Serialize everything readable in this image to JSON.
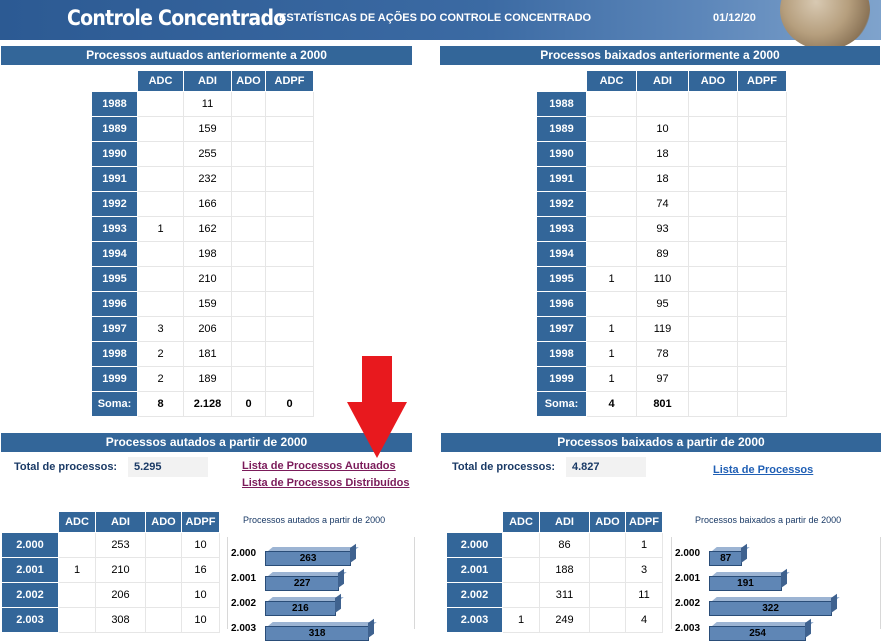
{
  "header": {
    "title": "Controle Concentrado",
    "subtitle": "ESTATÍSTICAS DE AÇÕES DO CONTROLE CONCENTRADO",
    "date": "01/12/20"
  },
  "columns": [
    "ADC",
    "ADI",
    "ADO",
    "ADPF"
  ],
  "autuados_pre2000": {
    "title": "Processos autuados anteriormente a 2000",
    "rows": [
      {
        "year": "1988",
        "adc": "",
        "adi": "11",
        "ado": "",
        "adpf": ""
      },
      {
        "year": "1989",
        "adc": "",
        "adi": "159",
        "ado": "",
        "adpf": ""
      },
      {
        "year": "1990",
        "adc": "",
        "adi": "255",
        "ado": "",
        "adpf": ""
      },
      {
        "year": "1991",
        "adc": "",
        "adi": "232",
        "ado": "",
        "adpf": ""
      },
      {
        "year": "1992",
        "adc": "",
        "adi": "166",
        "ado": "",
        "adpf": ""
      },
      {
        "year": "1993",
        "adc": "1",
        "adi": "162",
        "ado": "",
        "adpf": ""
      },
      {
        "year": "1994",
        "adc": "",
        "adi": "198",
        "ado": "",
        "adpf": ""
      },
      {
        "year": "1995",
        "adc": "",
        "adi": "210",
        "ado": "",
        "adpf": ""
      },
      {
        "year": "1996",
        "adc": "",
        "adi": "159",
        "ado": "",
        "adpf": ""
      },
      {
        "year": "1997",
        "adc": "3",
        "adi": "206",
        "ado": "",
        "adpf": ""
      },
      {
        "year": "1998",
        "adc": "2",
        "adi": "181",
        "ado": "",
        "adpf": ""
      },
      {
        "year": "1999",
        "adc": "2",
        "adi": "189",
        "ado": "",
        "adpf": ""
      }
    ],
    "sum": {
      "label": "Soma:",
      "adc": "8",
      "adi": "2.128",
      "ado": "0",
      "adpf": "0"
    }
  },
  "baixados_pre2000": {
    "title": "Processos baixados anteriormente a 2000",
    "rows": [
      {
        "year": "1988",
        "adc": "",
        "adi": "",
        "ado": "",
        "adpf": ""
      },
      {
        "year": "1989",
        "adc": "",
        "adi": "10",
        "ado": "",
        "adpf": ""
      },
      {
        "year": "1990",
        "adc": "",
        "adi": "18",
        "ado": "",
        "adpf": ""
      },
      {
        "year": "1991",
        "adc": "",
        "adi": "18",
        "ado": "",
        "adpf": ""
      },
      {
        "year": "1992",
        "adc": "",
        "adi": "74",
        "ado": "",
        "adpf": ""
      },
      {
        "year": "1993",
        "adc": "",
        "adi": "93",
        "ado": "",
        "adpf": ""
      },
      {
        "year": "1994",
        "adc": "",
        "adi": "89",
        "ado": "",
        "adpf": ""
      },
      {
        "year": "1995",
        "adc": "1",
        "adi": "110",
        "ado": "",
        "adpf": ""
      },
      {
        "year": "1996",
        "adc": "",
        "adi": "95",
        "ado": "",
        "adpf": ""
      },
      {
        "year": "1997",
        "adc": "1",
        "adi": "119",
        "ado": "",
        "adpf": ""
      },
      {
        "year": "1998",
        "adc": "1",
        "adi": "78",
        "ado": "",
        "adpf": ""
      },
      {
        "year": "1999",
        "adc": "1",
        "adi": "97",
        "ado": "",
        "adpf": ""
      }
    ],
    "sum": {
      "label": "Soma:",
      "adc": "4",
      "adi": "801",
      "ado": "",
      "adpf": ""
    }
  },
  "autados_2000": {
    "title": "Processos autados a partir de 2000",
    "total_label": "Total de processos:",
    "total_value": "5.295",
    "link1": "Lista de Processos Autuados",
    "link2": "Lista de Processos Distribuídos",
    "rows": [
      {
        "year": "2.000",
        "adc": "",
        "adi": "253",
        "ado": "",
        "adpf": "10"
      },
      {
        "year": "2.001",
        "adc": "1",
        "adi": "210",
        "ado": "",
        "adpf": "16"
      },
      {
        "year": "2.002",
        "adc": "",
        "adi": "206",
        "ado": "",
        "adpf": "10"
      },
      {
        "year": "2.003",
        "adc": "",
        "adi": "308",
        "ado": "",
        "adpf": "10"
      }
    ],
    "chart_title": "Processos autados a partir de 2000"
  },
  "baixados_2000": {
    "title": "Processos baixados a partir de 2000",
    "total_label": "Total de processos:",
    "total_value": "4.827",
    "link": "Lista de Processos",
    "rows": [
      {
        "year": "2.000",
        "adc": "",
        "adi": "86",
        "ado": "",
        "adpf": "1"
      },
      {
        "year": "2.001",
        "adc": "",
        "adi": "188",
        "ado": "",
        "adpf": "3"
      },
      {
        "year": "2.002",
        "adc": "",
        "adi": "311",
        "ado": "",
        "adpf": "11"
      },
      {
        "year": "2.003",
        "adc": "1",
        "adi": "249",
        "ado": "",
        "adpf": "4"
      }
    ],
    "chart_title": "Processos baixados a partir de 2000"
  },
  "chart_data": [
    {
      "type": "bar",
      "title": "Processos autados a partir de 2000",
      "orientation": "horizontal",
      "categories": [
        "2.000",
        "2.001",
        "2.002",
        "2.003"
      ],
      "values": [
        263,
        227,
        216,
        318
      ],
      "xlim": [
        0,
        400
      ]
    },
    {
      "type": "bar",
      "title": "Processos baixados a partir de 2000",
      "orientation": "horizontal",
      "categories": [
        "2.000",
        "2.001",
        "2.002",
        "2.003"
      ],
      "values": [
        87,
        191,
        322,
        254
      ],
      "xlim": [
        0,
        400
      ]
    }
  ],
  "colors": {
    "header_blue": "#336699",
    "annotation_arrow": "#e8191e",
    "link_purple": "#7b1b5a",
    "link_blue": "#1f5fb5"
  }
}
